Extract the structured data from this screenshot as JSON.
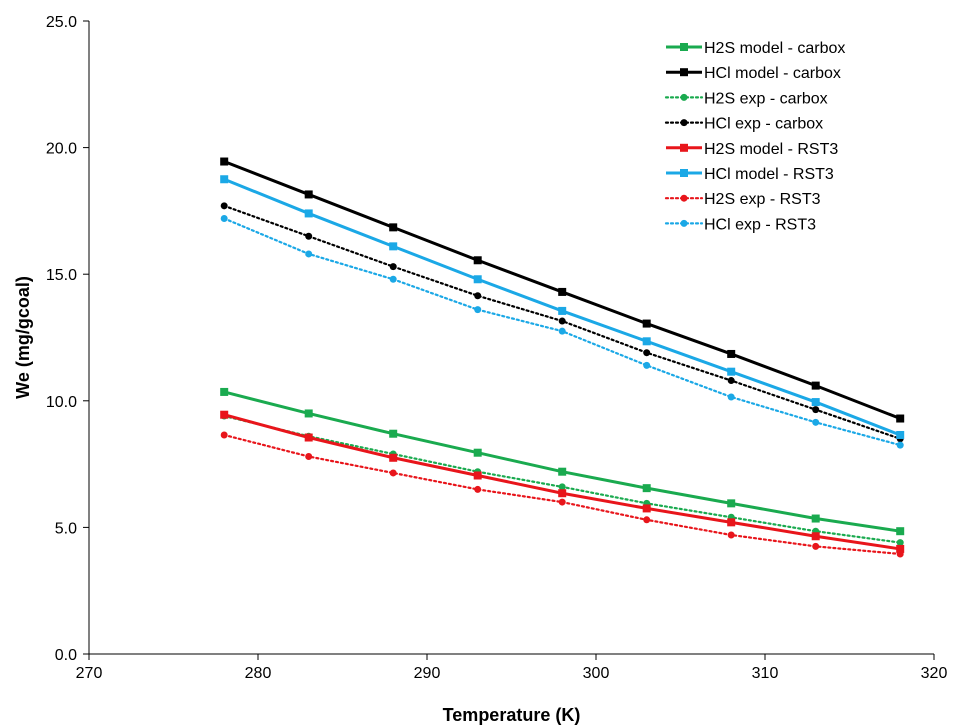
{
  "chart_data": {
    "type": "line",
    "title": "",
    "xlabel": "Temperature (K)",
    "ylabel": "We (mg/gcoal)",
    "xlim": [
      270,
      320
    ],
    "ylim": [
      0,
      25
    ],
    "x_ticks": [
      "270",
      "280",
      "290",
      "300",
      "310",
      "320"
    ],
    "y_ticks": [
      "0.0",
      "5.0",
      "10.0",
      "15.0",
      "20.0",
      "25.0"
    ],
    "grid": false,
    "legend_position": "top-right",
    "x": [
      278,
      283,
      288,
      293,
      298,
      303,
      308,
      313,
      318
    ],
    "series": [
      {
        "name": "H2S model - carbox",
        "color": "#1aaa4f",
        "style": "solid",
        "marker": "square",
        "values": [
          10.35,
          9.5,
          8.7,
          7.95,
          7.2,
          6.55,
          5.95,
          5.35,
          4.85
        ]
      },
      {
        "name": "HCl model - carbox",
        "color": "#000000",
        "style": "solid",
        "marker": "square",
        "values": [
          19.45,
          18.15,
          16.85,
          15.55,
          14.3,
          13.05,
          11.85,
          10.6,
          9.3
        ]
      },
      {
        "name": "H2S exp - carbox",
        "color": "#1aaa4f",
        "style": "dotted",
        "marker": "circle",
        "values": [
          9.4,
          8.6,
          7.9,
          7.2,
          6.6,
          5.95,
          5.4,
          4.85,
          4.4
        ]
      },
      {
        "name": "HCl exp - carbox",
        "color": "#000000",
        "style": "dotted",
        "marker": "circle",
        "values": [
          17.7,
          16.5,
          15.3,
          14.15,
          13.15,
          11.9,
          10.8,
          9.65,
          8.5
        ]
      },
      {
        "name": "H2S model - RST3",
        "color": "#e8151b",
        "style": "solid",
        "marker": "square",
        "values": [
          9.45,
          8.55,
          7.75,
          7.05,
          6.35,
          5.75,
          5.2,
          4.65,
          4.15
        ]
      },
      {
        "name": "HCl model - RST3",
        "color": "#1ba8e6",
        "style": "solid",
        "marker": "square",
        "values": [
          18.75,
          17.4,
          16.1,
          14.8,
          13.55,
          12.35,
          11.15,
          9.95,
          8.65
        ]
      },
      {
        "name": "H2S exp - RST3",
        "color": "#e8151b",
        "style": "dotted",
        "marker": "circle",
        "values": [
          8.65,
          7.8,
          7.15,
          6.5,
          6.0,
          5.3,
          4.7,
          4.25,
          3.95
        ]
      },
      {
        "name": "HCl exp - RST3",
        "color": "#1ba8e6",
        "style": "dotted",
        "marker": "circle",
        "values": [
          17.2,
          15.8,
          14.8,
          13.6,
          12.75,
          11.4,
          10.15,
          9.15,
          8.25
        ]
      }
    ]
  }
}
